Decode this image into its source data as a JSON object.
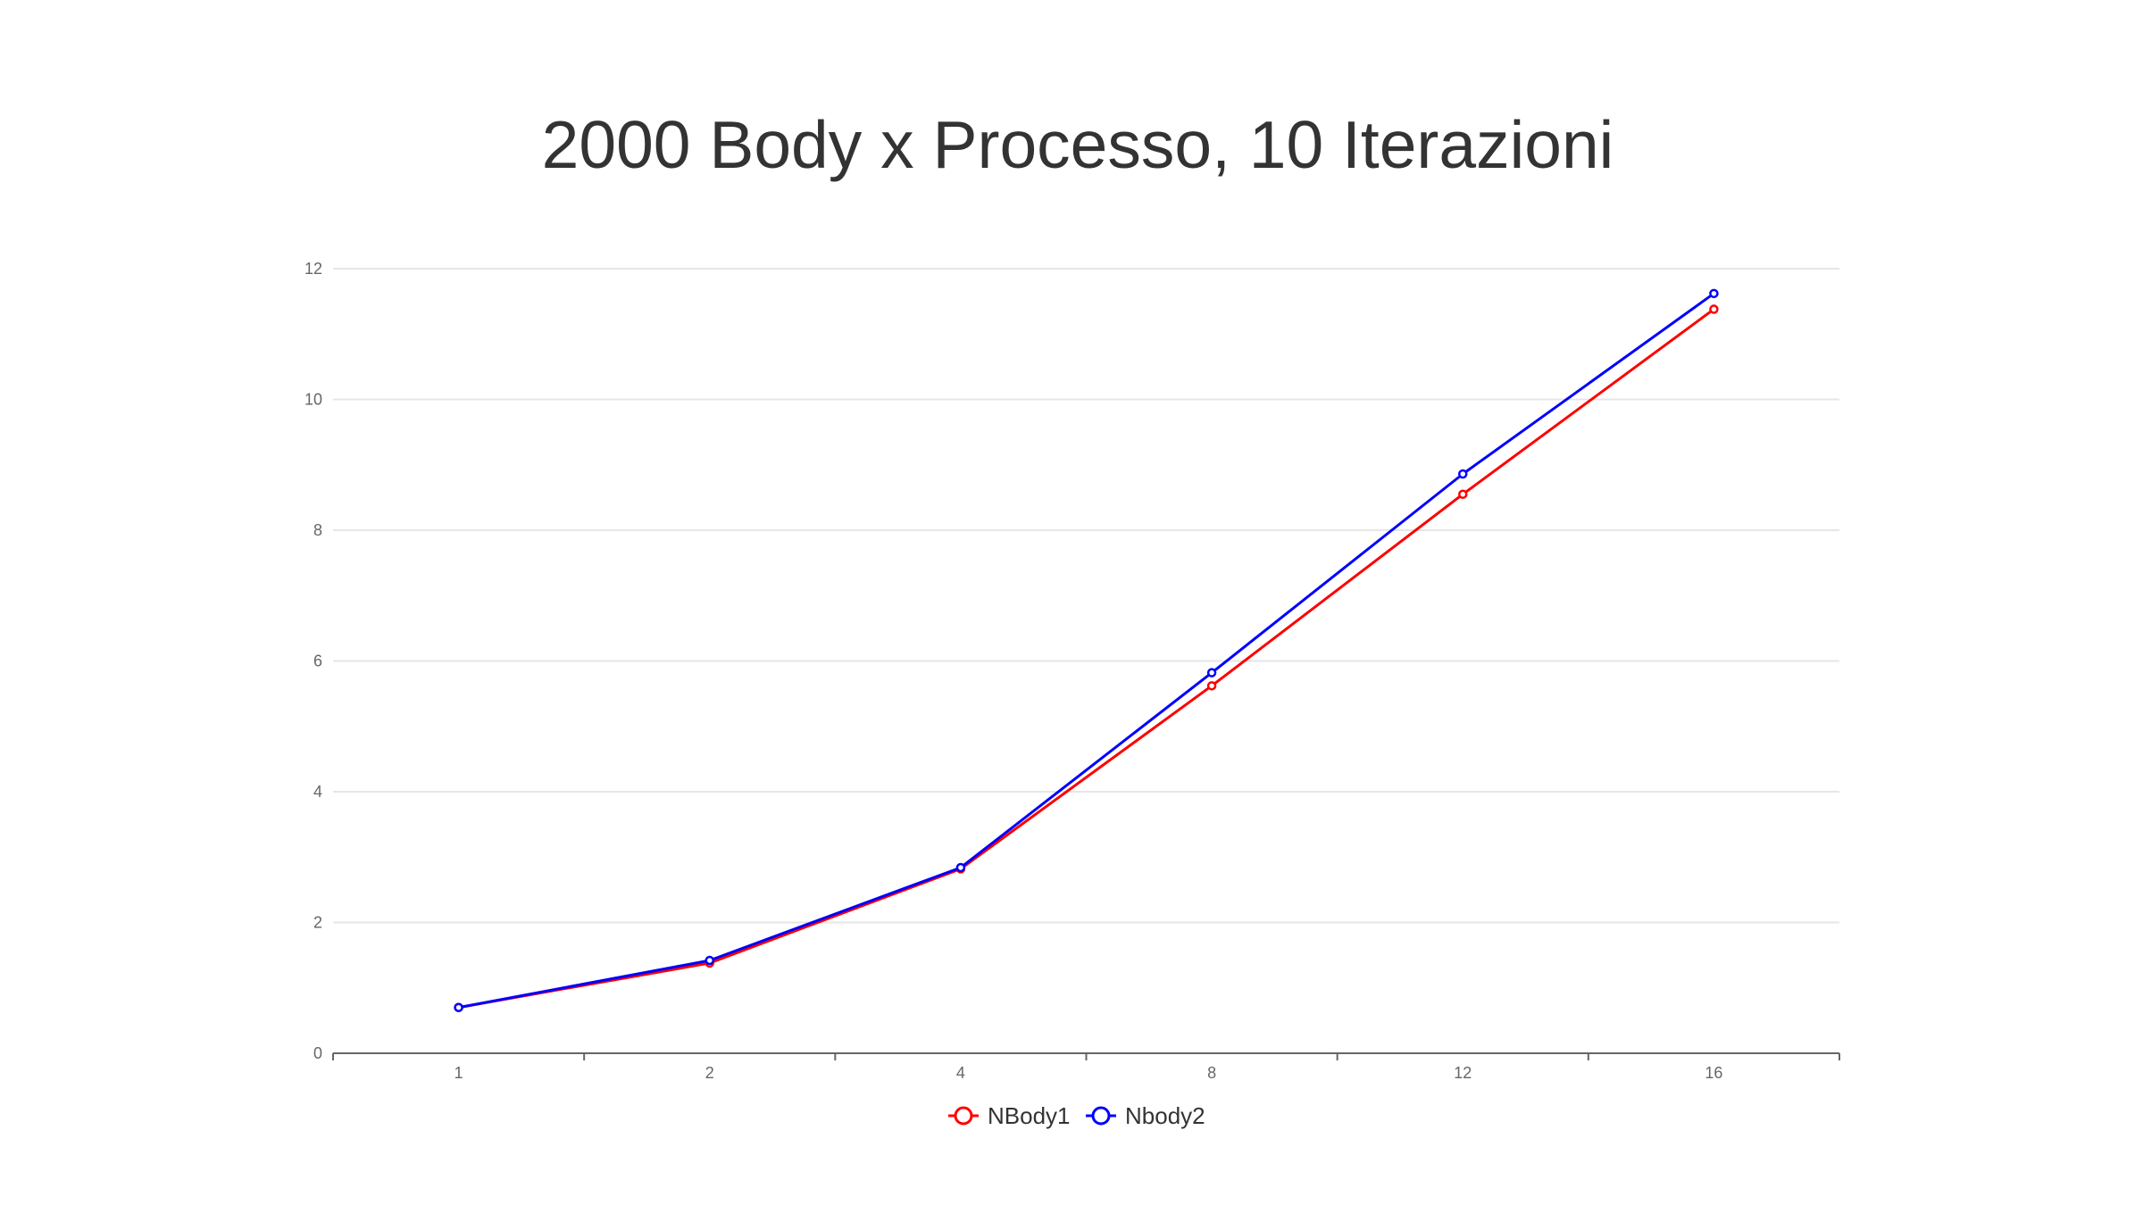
{
  "chart_data": {
    "type": "line",
    "title": "2000 Body x Processo, 10 Iterazioni",
    "xlabel": "",
    "ylabel": "",
    "categories": [
      "1",
      "2",
      "4",
      "8",
      "12",
      "16"
    ],
    "ylim": [
      0,
      12
    ],
    "yticks": [
      "0",
      "2",
      "4",
      "6",
      "8",
      "10",
      "12"
    ],
    "grid": true,
    "legend_position": "bottom-center",
    "series": [
      {
        "name": "NBody1",
        "color": "#ff0000",
        "values": [
          0.7,
          1.38,
          2.82,
          5.62,
          8.55,
          11.38
        ]
      },
      {
        "name": "Nbody2",
        "color": "#0000ff",
        "values": [
          0.7,
          1.42,
          2.84,
          5.82,
          8.86,
          11.62
        ]
      }
    ]
  }
}
